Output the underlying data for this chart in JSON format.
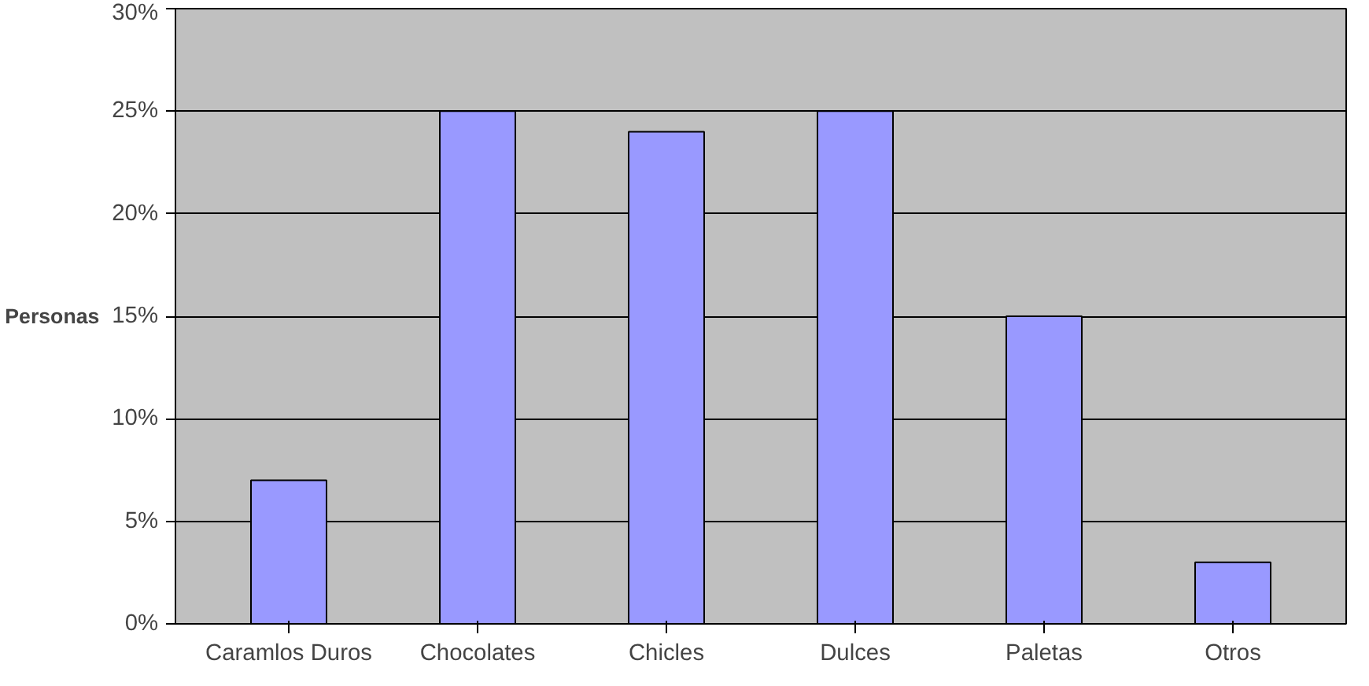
{
  "chart_data": {
    "type": "bar",
    "ylabel": "Personas",
    "categories": [
      "Caramlos Duros",
      "Chocolates",
      "Chicles",
      "Dulces",
      "Paletas",
      "Otros"
    ],
    "values": [
      7,
      25,
      24,
      25,
      15,
      3
    ],
    "color": "#9999ff",
    "ylim": [
      0,
      30
    ],
    "yticks": [
      {
        "value": 0,
        "label": "0%"
      },
      {
        "value": 5,
        "label": "5%"
      },
      {
        "value": 10,
        "label": "10%"
      },
      {
        "value": 15,
        "label": "15%"
      },
      {
        "value": 20,
        "label": "20%"
      },
      {
        "value": 25,
        "label": "25%"
      },
      {
        "value": 30,
        "label": "30%"
      }
    ],
    "grid": "y"
  }
}
